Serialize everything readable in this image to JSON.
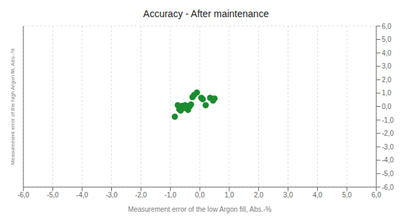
{
  "chart_data": {
    "type": "scatter",
    "title": "Accuracy - After maintenance",
    "xlabel": "Measurement error of the low Argon fill, Abs.-%",
    "ylabel": "Measurement error of the  high Argon fill, Abs.-%",
    "xlim": [
      -6,
      6
    ],
    "ylim": [
      -6,
      6
    ],
    "xticks": [
      {
        "value": -6.0,
        "label": "-6,0"
      },
      {
        "value": -5.0,
        "label": "-5,0"
      },
      {
        "value": -4.0,
        "label": "-4,0"
      },
      {
        "value": -3.0,
        "label": "-3,0"
      },
      {
        "value": -2.0,
        "label": "-2,0"
      },
      {
        "value": -1.0,
        "label": "-1,0"
      },
      {
        "value": 0.0,
        "label": "0,0"
      },
      {
        "value": 1.0,
        "label": "1,0"
      },
      {
        "value": 2.0,
        "label": "2,0"
      },
      {
        "value": 3.0,
        "label": "3,0"
      },
      {
        "value": 4.0,
        "label": "4,0"
      },
      {
        "value": 5.0,
        "label": "5,0"
      },
      {
        "value": 6.0,
        "label": "6,0"
      }
    ],
    "yticks": [
      {
        "value": -6.0,
        "label": "-6,0"
      },
      {
        "value": -5.0,
        "label": "-5,0"
      },
      {
        "value": -4.0,
        "label": "-4,0"
      },
      {
        "value": -3.0,
        "label": "-3,0"
      },
      {
        "value": -2.0,
        "label": "-2,0"
      },
      {
        "value": -1.0,
        "label": "-1,0"
      },
      {
        "value": 0.0,
        "label": "0,0"
      },
      {
        "value": 1.0,
        "label": "1,0"
      },
      {
        "value": 2.0,
        "label": "2,0"
      },
      {
        "value": 3.0,
        "label": "3,0"
      },
      {
        "value": 4.0,
        "label": "4,0"
      },
      {
        "value": 5.0,
        "label": "5,0"
      },
      {
        "value": 6.0,
        "label": "6,0"
      }
    ],
    "x": [
      -0.85,
      -0.75,
      -0.7,
      -0.65,
      -0.6,
      -0.55,
      -0.5,
      -0.48,
      -0.45,
      -0.4,
      -0.35,
      -0.3,
      -0.25,
      -0.2,
      -0.1,
      0.05,
      0.1,
      0.2,
      0.35,
      0.45,
      0.5
    ],
    "values": [
      -0.75,
      0.1,
      -0.2,
      -0.3,
      0.05,
      -0.1,
      0.1,
      -0.05,
      0.05,
      -0.25,
      0.0,
      0.15,
      0.7,
      0.85,
      1.05,
      0.65,
      0.55,
      0.1,
      0.65,
      0.45,
      0.6
    ],
    "color": "#1a8c2e",
    "grid": true
  }
}
